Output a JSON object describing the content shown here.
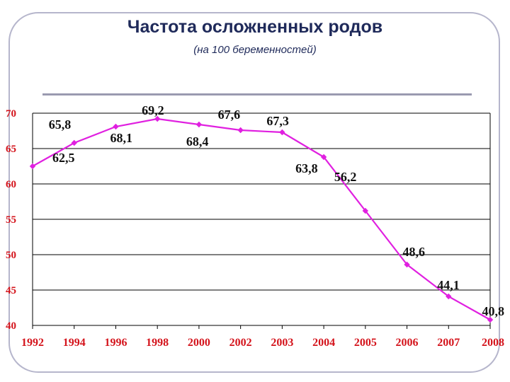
{
  "chart_data": {
    "type": "line",
    "title": "Частота осложненных родов",
    "subtitle": "(на 100 беременностей)",
    "xlabel": "",
    "ylabel": "",
    "ylim": [
      40,
      70
    ],
    "yticks": [
      "70",
      "65",
      "60",
      "55",
      "50",
      "45",
      "40"
    ],
    "grid": true,
    "legend": "none",
    "categories": [
      "1992",
      "1994",
      "1996",
      "1998",
      "2000",
      "2002",
      "2003",
      "2004",
      "2005",
      "2006",
      "2007",
      "2008"
    ],
    "series": [
      {
        "color": "#e020e0",
        "values": [
          62.5,
          65.8,
          68.1,
          69.2,
          68.4,
          67.6,
          67.3,
          63.8,
          56.2,
          48.6,
          44.1,
          40.8
        ],
        "labels": [
          "62,5",
          "65,8",
          "68,1",
          "69,2",
          "68,4",
          "67,6",
          "67,3",
          "63,8",
          "56,2",
          "48,6",
          "44,1",
          "40,8"
        ]
      }
    ]
  }
}
